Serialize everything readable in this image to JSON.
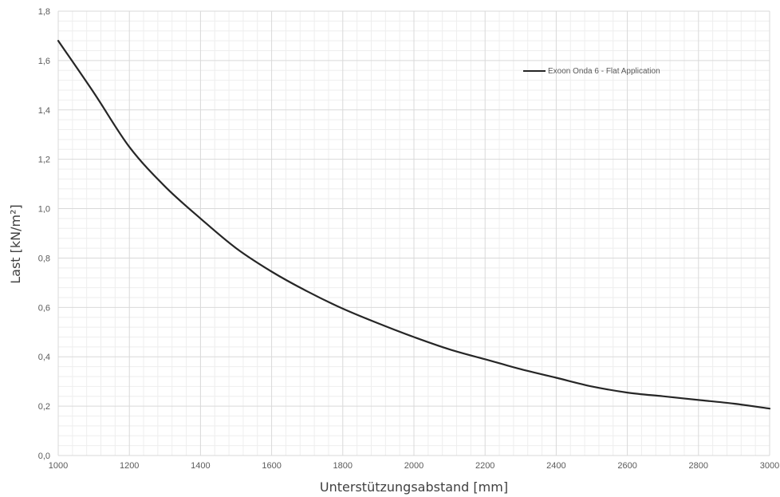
{
  "chart_data": {
    "type": "line",
    "xlabel": "Unterstützungsabstand [mm]",
    "ylabel": "Last [kN/m²]",
    "xlim": [
      1000,
      3000
    ],
    "ylim": [
      0,
      1.8
    ],
    "x_ticks": [
      "1000",
      "1200",
      "1400",
      "1600",
      "1800",
      "2000",
      "2200",
      "2400",
      "2600",
      "2800",
      "3000"
    ],
    "y_ticks": [
      "0,0",
      "0,2",
      "0,4",
      "0,6",
      "0,8",
      "1,0",
      "1,2",
      "1,4",
      "1,6",
      "1,8"
    ],
    "grid": true,
    "legend_position": "top-right",
    "series": [
      {
        "name": "Exoon Onda 6 - Flat Application",
        "color": "#262626",
        "x": [
          1000,
          1100,
          1200,
          1300,
          1400,
          1500,
          1600,
          1700,
          1800,
          1900,
          2000,
          2100,
          2200,
          2300,
          2400,
          2500,
          2600,
          2700,
          2800,
          2900,
          3000
        ],
        "y": [
          1.68,
          1.47,
          1.25,
          1.09,
          0.96,
          0.84,
          0.745,
          0.665,
          0.595,
          0.535,
          0.48,
          0.43,
          0.39,
          0.35,
          0.315,
          0.28,
          0.255,
          0.24,
          0.225,
          0.21,
          0.19
        ]
      }
    ]
  }
}
